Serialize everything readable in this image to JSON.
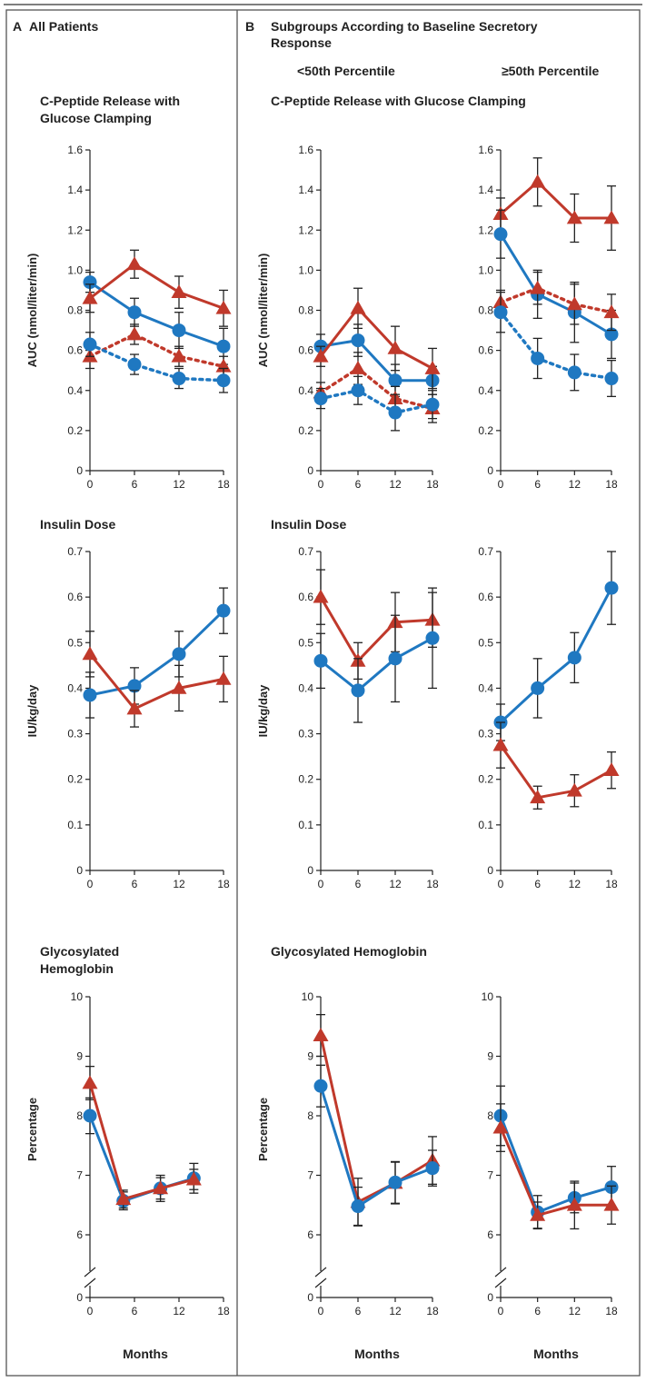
{
  "figure": {
    "panel_a": {
      "letter": "A",
      "title": "All Patients"
    },
    "panel_b": {
      "letter": "B",
      "title_line1": "Subgroups According to Baseline Secretory",
      "title_line2": "Response",
      "col_left": "<50th Percentile",
      "col_right": "≥50th Percentile"
    },
    "rows": {
      "cpeptide_a_line1": "C-Peptide Release with",
      "cpeptide_a_line2": "Glucose Clamping",
      "cpeptide_b": "C-Peptide Release with Glucose Clamping",
      "insulin": "Insulin Dose",
      "hba1c_a_line1": "Glycosylated",
      "hba1c_a_line2": "Hemoglobin",
      "hba1c_b": "Glycosylated Hemoglobin"
    },
    "xlabel": "Months"
  },
  "colors": {
    "blue": "#1f78c1",
    "red": "#c0392b",
    "errorbar": "#222222",
    "axis": "#222222",
    "border": "#555555"
  },
  "chart_data": [
    {
      "id": "cpep_all",
      "type": "line",
      "ylabel": "AUC (nmol/liter/min)",
      "ylim": [
        0,
        1.6
      ],
      "yticks": [
        "0",
        "0.2",
        "0.4",
        "0.6",
        "0.8",
        "1.0",
        "1.2",
        "1.4",
        "1.6"
      ],
      "xticks": [
        "0",
        "6",
        "12",
        "18"
      ],
      "x": [
        0,
        6,
        12,
        18
      ],
      "series": [
        {
          "color": "blue",
          "marker": "circle",
          "dashed": false,
          "values": [
            0.94,
            0.79,
            0.7,
            0.62
          ],
          "err": [
            0.05,
            0.07,
            0.09,
            0.09
          ]
        },
        {
          "color": "red",
          "marker": "triangle",
          "dashed": false,
          "values": [
            0.86,
            1.03,
            0.89,
            0.81
          ],
          "err": [
            0.07,
            0.07,
            0.08,
            0.09
          ]
        },
        {
          "color": "red",
          "marker": "triangle",
          "dashed": true,
          "values": [
            0.57,
            0.68,
            0.57,
            0.52
          ],
          "err": [
            0.06,
            0.05,
            0.05,
            0.05
          ]
        },
        {
          "color": "blue",
          "marker": "circle",
          "dashed": true,
          "values": [
            0.63,
            0.53,
            0.46,
            0.45
          ],
          "err": [
            0.06,
            0.05,
            0.05,
            0.06
          ]
        }
      ]
    },
    {
      "id": "cpep_low",
      "type": "line",
      "ylabel": "AUC (nmol/liter/min)",
      "ylim": [
        0,
        1.6
      ],
      "yticks": [
        "0",
        "0.2",
        "0.4",
        "0.6",
        "0.8",
        "1.0",
        "1.2",
        "1.4",
        "1.6"
      ],
      "xticks": [
        "0",
        "6",
        "12",
        "18"
      ],
      "x": [
        0,
        6,
        12,
        18
      ],
      "series": [
        {
          "color": "blue",
          "marker": "circle",
          "dashed": false,
          "values": [
            0.62,
            0.65,
            0.45,
            0.45
          ],
          "err": [
            0.06,
            0.08,
            0.08,
            0.07
          ]
        },
        {
          "color": "red",
          "marker": "triangle",
          "dashed": false,
          "values": [
            0.57,
            0.81,
            0.61,
            0.51
          ],
          "err": [
            0.05,
            0.1,
            0.11,
            0.1
          ]
        },
        {
          "color": "red",
          "marker": "triangle",
          "dashed": true,
          "values": [
            0.39,
            0.51,
            0.36,
            0.31
          ],
          "err": [
            0.05,
            0.08,
            0.06,
            0.07
          ]
        },
        {
          "color": "blue",
          "marker": "circle",
          "dashed": true,
          "values": [
            0.36,
            0.4,
            0.29,
            0.33
          ],
          "err": [
            0.05,
            0.07,
            0.09,
            0.07
          ]
        }
      ]
    },
    {
      "id": "cpep_high",
      "type": "line",
      "ylabel": "",
      "ylim": [
        0,
        1.6
      ],
      "yticks": [
        "0",
        "0.2",
        "0.4",
        "0.6",
        "0.8",
        "1.0",
        "1.2",
        "1.4",
        "1.6"
      ],
      "xticks": [
        "0",
        "6",
        "12",
        "18"
      ],
      "x": [
        0,
        6,
        12,
        18
      ],
      "series": [
        {
          "color": "red",
          "marker": "triangle",
          "dashed": false,
          "values": [
            1.28,
            1.44,
            1.26,
            1.26
          ],
          "err": [
            0.08,
            0.12,
            0.12,
            0.16
          ]
        },
        {
          "color": "blue",
          "marker": "circle",
          "dashed": false,
          "values": [
            1.18,
            0.88,
            0.79,
            0.68
          ],
          "err": [
            0.12,
            0.12,
            0.15,
            0.12
          ]
        },
        {
          "color": "red",
          "marker": "triangle",
          "dashed": true,
          "values": [
            0.84,
            0.91,
            0.83,
            0.79
          ],
          "err": [
            0.06,
            0.08,
            0.1,
            0.09
          ]
        },
        {
          "color": "blue",
          "marker": "circle",
          "dashed": true,
          "values": [
            0.79,
            0.56,
            0.49,
            0.46
          ],
          "err": [
            0.1,
            0.1,
            0.09,
            0.09
          ]
        }
      ]
    },
    {
      "id": "ins_all",
      "type": "line",
      "ylabel": "IU/kg/day",
      "ylim": [
        0,
        0.7
      ],
      "yticks": [
        "0",
        "0.1",
        "0.2",
        "0.3",
        "0.4",
        "0.5",
        "0.6",
        "0.7"
      ],
      "xticks": [
        "0",
        "6",
        "12",
        "18"
      ],
      "x": [
        0,
        6,
        12,
        18
      ],
      "series": [
        {
          "color": "blue",
          "marker": "circle",
          "dashed": false,
          "values": [
            0.385,
            0.405,
            0.475,
            0.57
          ],
          "err": [
            0.05,
            0.04,
            0.05,
            0.05
          ]
        },
        {
          "color": "red",
          "marker": "triangle",
          "dashed": false,
          "values": [
            0.475,
            0.355,
            0.4,
            0.42
          ],
          "err": [
            0.05,
            0.04,
            0.05,
            0.05
          ]
        }
      ]
    },
    {
      "id": "ins_low",
      "type": "line",
      "ylabel": "IU/kg/day",
      "ylim": [
        0,
        0.7
      ],
      "yticks": [
        "0",
        "0.1",
        "0.2",
        "0.3",
        "0.4",
        "0.5",
        "0.6",
        "0.7"
      ],
      "xticks": [
        "0",
        "6",
        "12",
        "18"
      ],
      "x": [
        0,
        6,
        12,
        18
      ],
      "series": [
        {
          "color": "red",
          "marker": "triangle",
          "dashed": false,
          "values": [
            0.6,
            0.46,
            0.545,
            0.55
          ],
          "err": [
            0.06,
            0.04,
            0.065,
            0.06
          ]
        },
        {
          "color": "blue",
          "marker": "circle",
          "dashed": false,
          "values": [
            0.46,
            0.395,
            0.465,
            0.51
          ],
          "err": [
            0.06,
            0.07,
            0.095,
            0.11
          ]
        }
      ]
    },
    {
      "id": "ins_high",
      "type": "line",
      "ylabel": "",
      "ylim": [
        0,
        0.7
      ],
      "yticks": [
        "0",
        "0.1",
        "0.2",
        "0.3",
        "0.4",
        "0.5",
        "0.6",
        "0.7"
      ],
      "xticks": [
        "0",
        "6",
        "12",
        "18"
      ],
      "x": [
        0,
        6,
        12,
        18
      ],
      "series": [
        {
          "color": "blue",
          "marker": "circle",
          "dashed": false,
          "values": [
            0.325,
            0.4,
            0.467,
            0.62
          ],
          "err": [
            0.04,
            0.065,
            0.055,
            0.08
          ]
        },
        {
          "color": "red",
          "marker": "triangle",
          "dashed": false,
          "values": [
            0.275,
            0.16,
            0.175,
            0.22
          ],
          "err": [
            0.05,
            0.025,
            0.035,
            0.04
          ]
        }
      ]
    },
    {
      "id": "hba_all",
      "type": "line",
      "ylabel": "Percentage",
      "broken_axis": true,
      "ylim": [
        6,
        10
      ],
      "yticks": [
        "6",
        "7",
        "8",
        "9",
        "10"
      ],
      "y_zero": "0",
      "xticks": [
        "0",
        "6",
        "12",
        "18"
      ],
      "x": [
        0,
        4.5,
        9.5,
        14
      ],
      "series": [
        {
          "color": "blue",
          "marker": "circle",
          "dashed": false,
          "values": [
            8.0,
            6.57,
            6.78,
            6.95
          ],
          "err": [
            0.3,
            0.15,
            0.22,
            0.25
          ]
        },
        {
          "color": "red",
          "marker": "triangle",
          "dashed": false,
          "values": [
            8.55,
            6.6,
            6.78,
            6.93
          ],
          "err": [
            0.28,
            0.15,
            0.18,
            0.17
          ]
        }
      ]
    },
    {
      "id": "hba_low",
      "type": "line",
      "ylabel": "Percentage",
      "broken_axis": true,
      "ylim": [
        6,
        10
      ],
      "yticks": [
        "6",
        "7",
        "8",
        "9",
        "10"
      ],
      "y_zero": "0",
      "xticks": [
        "0",
        "6",
        "12",
        "18"
      ],
      "x": [
        0,
        6,
        12,
        18
      ],
      "series": [
        {
          "color": "red",
          "marker": "triangle",
          "dashed": false,
          "values": [
            9.35,
            6.55,
            6.87,
            7.25
          ],
          "err": [
            0.35,
            0.4,
            0.35,
            0.4
          ]
        },
        {
          "color": "blue",
          "marker": "circle",
          "dashed": false,
          "values": [
            8.5,
            6.48,
            6.88,
            7.12
          ],
          "err": [
            0.35,
            0.32,
            0.35,
            0.3
          ]
        }
      ]
    },
    {
      "id": "hba_high",
      "type": "line",
      "ylabel": "",
      "broken_axis": true,
      "ylim": [
        6,
        10
      ],
      "yticks": [
        "6",
        "7",
        "8",
        "9",
        "10"
      ],
      "y_zero": "0",
      "xticks": [
        "0",
        "6",
        "12",
        "18"
      ],
      "x": [
        0,
        6,
        12,
        18
      ],
      "series": [
        {
          "color": "blue",
          "marker": "circle",
          "dashed": false,
          "values": [
            8.0,
            6.38,
            6.62,
            6.8
          ],
          "err": [
            0.5,
            0.28,
            0.25,
            0.35
          ]
        },
        {
          "color": "red",
          "marker": "triangle",
          "dashed": false,
          "values": [
            7.8,
            6.33,
            6.5,
            6.5
          ],
          "err": [
            0.4,
            0.22,
            0.4,
            0.32
          ]
        }
      ]
    }
  ]
}
